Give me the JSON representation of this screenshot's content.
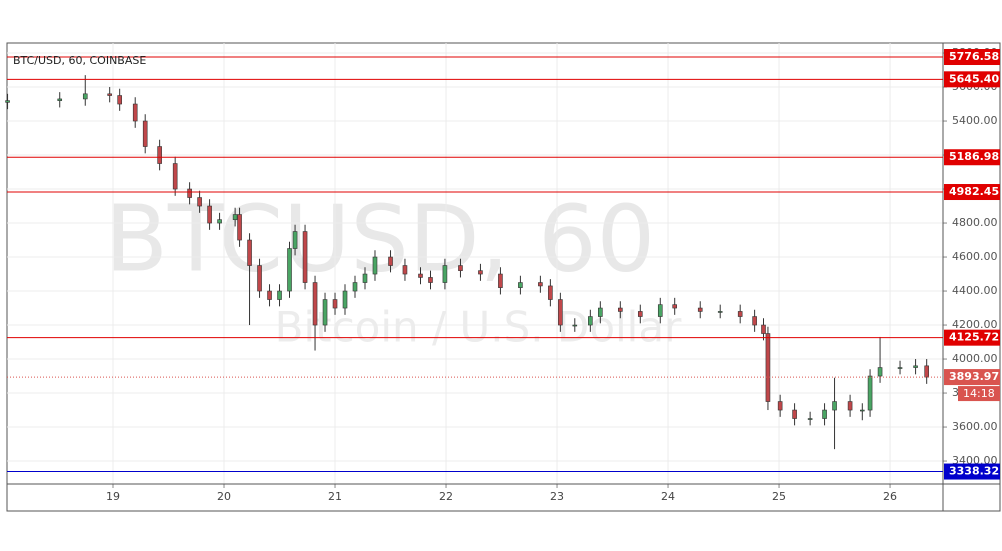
{
  "chart_data": {
    "type": "candlestick",
    "title": "BTC/USD, 60, COINBASE",
    "watermark": "BTCUSD, 60",
    "watermark_subtitle": "Bitcoin / U.S. Dollar",
    "up_color": "#4aa564",
    "down_color": "#c0474a",
    "grid": true,
    "xlim": [
      18.045,
      26.477
    ],
    "ylim": [
      3265,
      5859
    ],
    "xticks": [
      19,
      20,
      21,
      22,
      23,
      24,
      25,
      26
    ],
    "yticks": [
      {
        "value": 3400,
        "label": "3400.00"
      },
      {
        "value": 3600,
        "label": "3600.00"
      },
      {
        "value": 3800,
        "label": "3800.00"
      },
      {
        "value": 4000,
        "label": "4000.00"
      },
      {
        "value": 4200,
        "label": "4200.00"
      },
      {
        "value": 4400,
        "label": "4400.00"
      },
      {
        "value": 4600,
        "label": "4600.00"
      },
      {
        "value": 4800,
        "label": "4800.00"
      },
      {
        "value": 5000,
        "label": "5000.00"
      },
      {
        "value": 5200,
        "label": "5200.00"
      },
      {
        "value": 5400,
        "label": "5400.00"
      },
      {
        "value": 5600,
        "label": "5600.00"
      },
      {
        "value": 5800,
        "label": "5800.00"
      }
    ],
    "x": [
      18.05,
      18.52,
      18.75,
      18.97,
      19.06,
      19.2,
      19.29,
      19.42,
      19.56,
      19.69,
      19.78,
      19.87,
      19.96,
      20.1,
      20.14,
      20.23,
      20.32,
      20.41,
      20.5,
      20.59,
      20.64,
      20.73,
      20.82,
      20.91,
      21.0,
      21.09,
      21.18,
      21.27,
      21.36,
      21.5,
      21.63,
      21.77,
      21.86,
      21.99,
      22.13,
      22.31,
      22.49,
      22.67,
      22.85,
      22.94,
      23.03,
      23.16,
      23.3,
      23.39,
      23.57,
      23.75,
      23.93,
      24.06,
      24.29,
      24.47,
      24.65,
      24.78,
      24.86,
      24.9,
      25.01,
      25.14,
      25.28,
      25.41,
      25.5,
      25.64,
      25.75,
      25.82,
      25.91,
      26.09,
      26.23,
      26.33
    ],
    "open": [
      5510,
      5520,
      5530,
      5560,
      5550,
      5500,
      5400,
      5250,
      5150,
      5000,
      4950,
      4900,
      4800,
      4820,
      4850,
      4700,
      4550,
      4400,
      4350,
      4400,
      4650,
      4750,
      4450,
      4200,
      4350,
      4300,
      4400,
      4450,
      4500,
      4600,
      4550,
      4500,
      4480,
      4450,
      4550,
      4520,
      4500,
      4420,
      4450,
      4430,
      4350,
      4200,
      4200,
      4250,
      4300,
      4280,
      4250,
      4320,
      4300,
      4280,
      4280,
      4250,
      4200,
      4150,
      3750,
      3700,
      3650,
      3650,
      3700,
      3750,
      3700,
      3700,
      3900,
      3950,
      3950,
      3960
    ],
    "high": [
      5560,
      5570,
      5670,
      5600,
      5590,
      5540,
      5440,
      5290,
      5190,
      5040,
      4990,
      4940,
      4860,
      4890,
      4890,
      4740,
      4590,
      4440,
      4440,
      4690,
      4790,
      4790,
      4490,
      4390,
      4390,
      4440,
      4490,
      4540,
      4640,
      4640,
      4590,
      4540,
      4520,
      4590,
      4590,
      4560,
      4540,
      4490,
      4490,
      4470,
      4390,
      4240,
      4290,
      4340,
      4340,
      4320,
      4360,
      4360,
      4340,
      4320,
      4320,
      4290,
      4240,
      4190,
      3790,
      3740,
      3690,
      3740,
      3890,
      3790,
      3740,
      3940,
      4130,
      3990,
      4000,
      4000
    ],
    "low": [
      5470,
      5480,
      5490,
      5510,
      5460,
      5360,
      5210,
      5110,
      4960,
      4910,
      4860,
      4760,
      4760,
      4780,
      4660,
      4200,
      4360,
      4310,
      4310,
      4360,
      4610,
      4410,
      4050,
      4160,
      4260,
      4260,
      4360,
      4410,
      4460,
      4510,
      4460,
      4440,
      4410,
      4410,
      4480,
      4460,
      4380,
      4380,
      4390,
      4310,
      4160,
      4160,
      4160,
      4210,
      4240,
      4210,
      4210,
      4260,
      4240,
      4240,
      4210,
      4160,
      4110,
      3700,
      3660,
      3610,
      3610,
      3610,
      3470,
      3660,
      3640,
      3660,
      3860,
      3910,
      3910,
      3854
    ],
    "close": [
      5520,
      5530,
      5560,
      5550,
      5500,
      5400,
      5250,
      5150,
      5000,
      4950,
      4900,
      4800,
      4820,
      4850,
      4700,
      4550,
      4400,
      4350,
      4400,
      4650,
      4750,
      4450,
      4200,
      4350,
      4300,
      4400,
      4450,
      4500,
      4600,
      4550,
      4500,
      4480,
      4450,
      4550,
      4520,
      4500,
      4420,
      4450,
      4430,
      4350,
      4200,
      4200,
      4250,
      4300,
      4280,
      4250,
      4320,
      4300,
      4280,
      4280,
      4250,
      4200,
      4150,
      3750,
      3700,
      3650,
      3650,
      3700,
      3750,
      3700,
      3700,
      3900,
      3950,
      3950,
      3960,
      3893.97
    ],
    "levels": [
      {
        "value": 5776.58,
        "label": "5776.58",
        "color": "#e00000"
      },
      {
        "value": 5645.4,
        "label": "5645.40",
        "color": "#e00000"
      },
      {
        "value": 5186.98,
        "label": "5186.98",
        "color": "#e00000"
      },
      {
        "value": 4982.45,
        "label": "4982.45",
        "color": "#e00000"
      },
      {
        "value": 4125.72,
        "label": "4125.72",
        "color": "#e00000"
      },
      {
        "value": 3338.32,
        "label": "3338.32",
        "color": "#0000cc"
      }
    ],
    "last_price": {
      "value": 3893.97,
      "label": "3893.97",
      "color": "#d9544f"
    },
    "countdown": "14:18"
  }
}
